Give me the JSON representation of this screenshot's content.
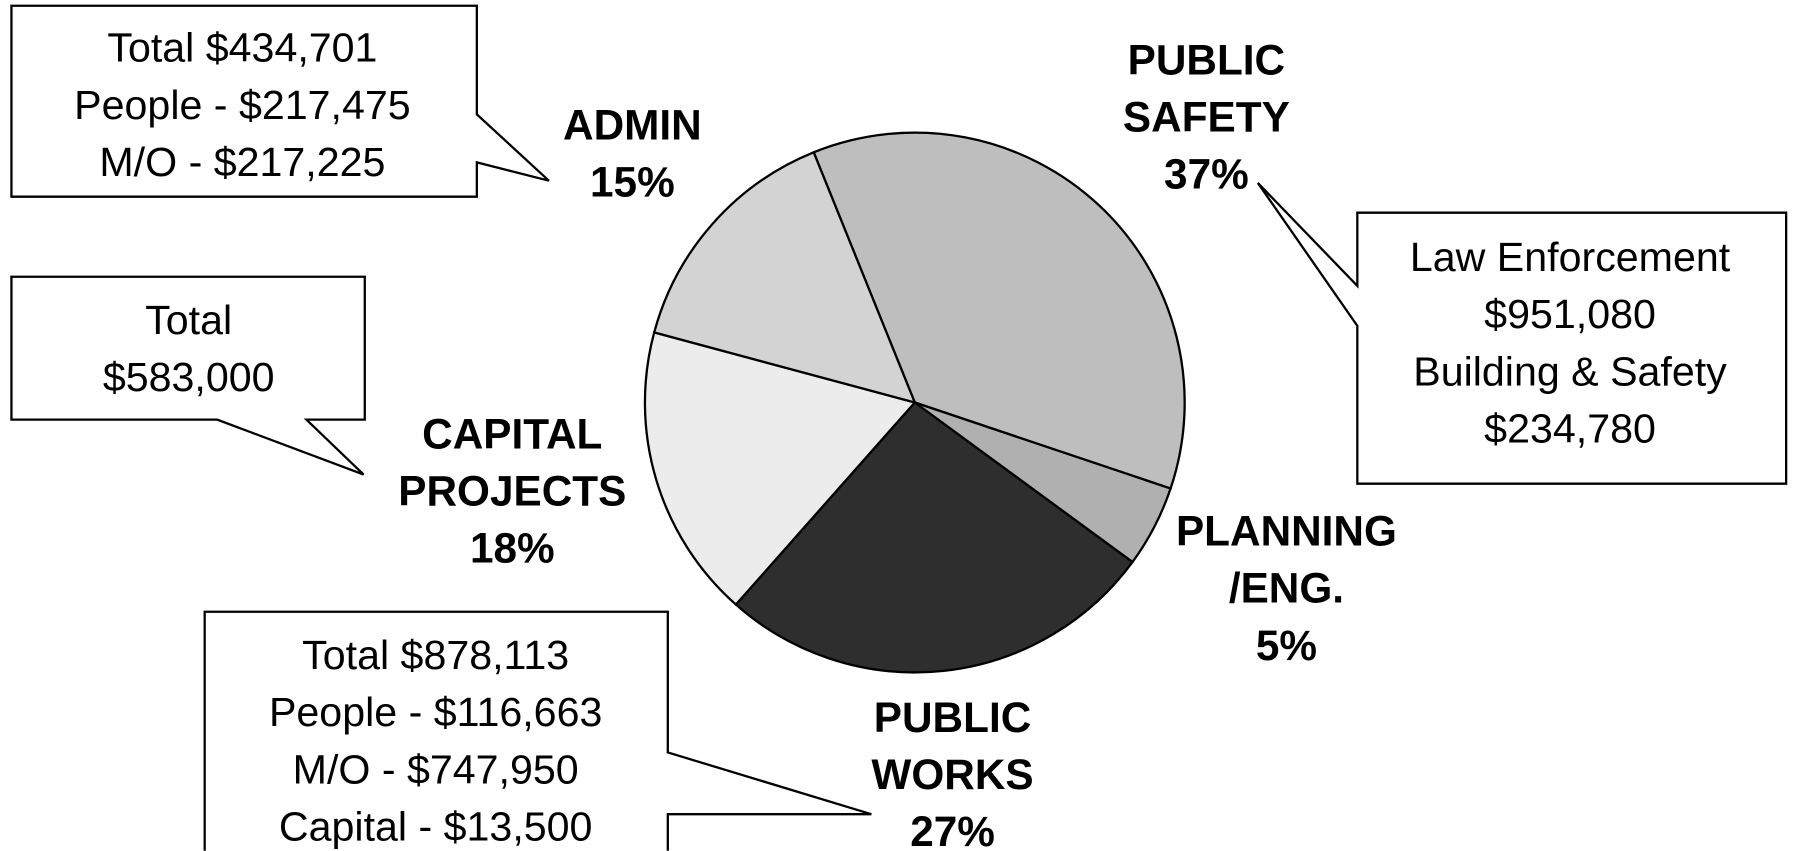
{
  "chart_data": {
    "type": "pie",
    "categories": [
      "PUBLIC\nSAFETY",
      "PLANNING\n/ENG.",
      "PUBLIC\nWORKS",
      "CAPITAL\nPROJECTS",
      "ADMIN"
    ],
    "values": [
      37,
      5,
      27,
      18,
      15
    ],
    "value_labels": [
      "37%",
      "5%",
      "27%",
      "18%",
      "15%"
    ],
    "colors": [
      "#bebebe",
      "#b0b0b0",
      "#2e2e2e",
      "#ececec",
      "#d3d3d3"
    ],
    "annotations": [
      {
        "lines": [
          "Law Enforcement",
          "$951,080",
          "Building & Safety",
          "$234,780"
        ]
      },
      {
        "lines": [
          "Total $878,113",
          "People - $116,663",
          "M/O - $747,950",
          "Capital - $13,500"
        ]
      },
      {
        "lines": [
          "Total",
          "$583,000"
        ]
      },
      {
        "lines": [
          "Total $434,701",
          "People - $217,475",
          "M/O - $217,225"
        ]
      }
    ]
  }
}
